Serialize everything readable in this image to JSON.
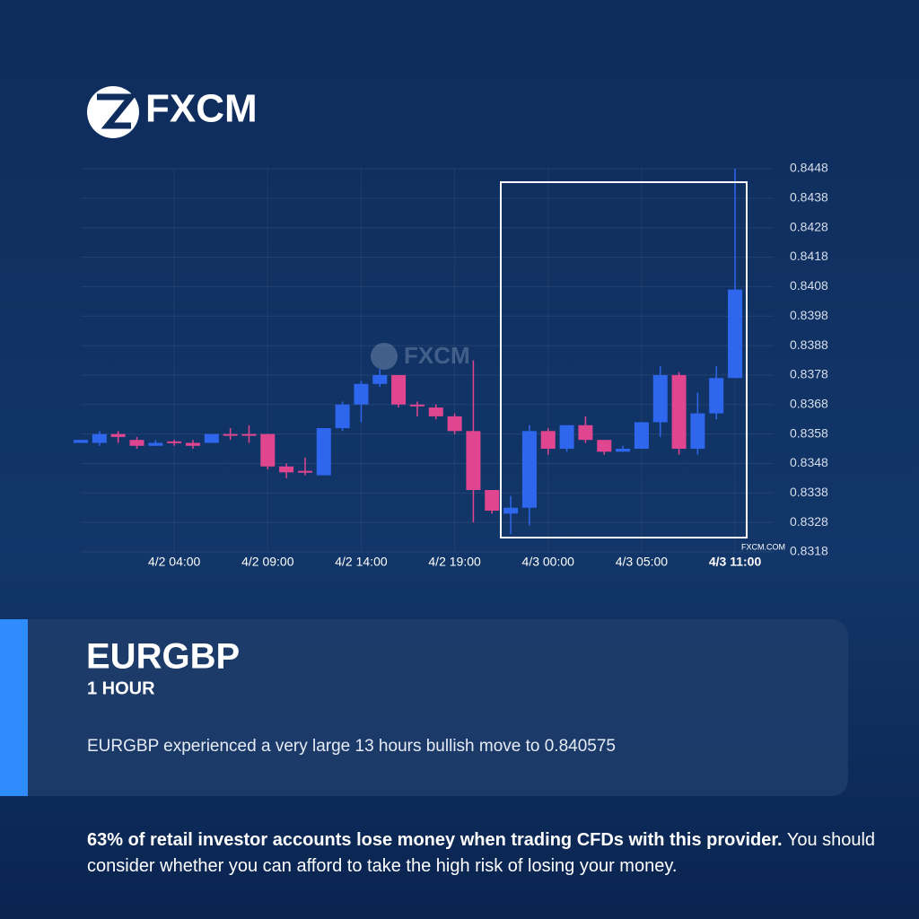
{
  "logo": "FXCM",
  "chart_data": {
    "type": "candlestick",
    "watermark": "FXCM",
    "source": "FXCM.COM",
    "categories": [
      null,
      null,
      null,
      null,
      null,
      "4/2 04:00",
      null,
      null,
      null,
      null,
      "4/2 09:00",
      null,
      null,
      null,
      null,
      "4/2 14:00",
      null,
      null,
      null,
      null,
      "4/2 19:00",
      null,
      null,
      null,
      null,
      "4/3 00:00",
      null,
      null,
      null,
      null,
      "4/3 05:00",
      null,
      null,
      null,
      null,
      "4/3 11:00"
    ],
    "open": [
      0.8355,
      0.8355,
      0.8358,
      0.8356,
      0.8354,
      0.83555,
      0.8355,
      0.8355,
      0.8358,
      0.8358,
      0.8358,
      0.8347,
      0.83455,
      0.8344,
      0.836,
      0.8368,
      0.8375,
      0.8378,
      0.8368,
      0.8367,
      0.8364,
      0.8359,
      0.8339,
      0.8331,
      0.8333,
      0.8359,
      0.8353,
      0.8361,
      0.8356,
      0.8352,
      0.8353,
      0.8362,
      0.8378,
      0.8353,
      0.8365,
      0.8377
    ],
    "high": [
      0.8356,
      0.8359,
      0.8359,
      0.8357,
      0.8356,
      0.8356,
      0.8356,
      0.8358,
      0.836,
      0.8361,
      0.8358,
      0.8348,
      0.835,
      0.836,
      0.8369,
      0.8376,
      0.838,
      0.8378,
      0.8369,
      0.8368,
      0.8365,
      0.8383,
      0.8339,
      0.8337,
      0.8361,
      0.836,
      0.8361,
      0.8364,
      0.8356,
      0.8354,
      0.8362,
      0.8381,
      0.8379,
      0.8372,
      0.8381,
      0.8448
    ],
    "low": [
      0.8355,
      0.8354,
      0.8355,
      0.8353,
      0.8354,
      0.8354,
      0.8353,
      0.8355,
      0.8356,
      0.8355,
      0.8346,
      0.8343,
      0.8344,
      0.8344,
      0.8359,
      0.8362,
      0.8374,
      0.8367,
      0.8364,
      0.8363,
      0.8358,
      0.8328,
      0.8331,
      0.8324,
      0.8327,
      0.8351,
      0.8352,
      0.8355,
      0.8351,
      0.8352,
      0.8353,
      0.8357,
      0.8351,
      0.8351,
      0.8363,
      0.8377
    ],
    "close": [
      0.8356,
      0.8358,
      0.8357,
      0.8354,
      0.8355,
      0.8355,
      0.8354,
      0.8358,
      0.83578,
      0.83575,
      0.8347,
      0.8345,
      0.8345,
      0.836,
      0.8368,
      0.8375,
      0.8378,
      0.8368,
      0.83675,
      0.8364,
      0.8359,
      0.8339,
      0.8332,
      0.8333,
      0.8359,
      0.8353,
      0.8361,
      0.8356,
      0.8352,
      0.8353,
      0.8362,
      0.8378,
      0.8353,
      0.8365,
      0.8377,
      0.8407
    ],
    "up_color": "#2f66ee",
    "down_color": "#e0468f",
    "ylim": [
      0.8318,
      0.8448
    ],
    "yticks": [
      0.8448,
      0.8438,
      0.8428,
      0.8418,
      0.8408,
      0.8398,
      0.8388,
      0.8378,
      0.8368,
      0.8358,
      0.8348,
      0.8338,
      0.8328,
      0.8318
    ],
    "grid": true
  },
  "card": {
    "symbol": "EURGBP",
    "timeframe": "1 HOUR",
    "description": "EURGBP experienced a very large 13 hours bullish move to 0.840575"
  },
  "disclaimer": {
    "bold": "63% of retail investor accounts lose money when trading CFDs with this provider.",
    "text": "You should consider whether you can afford to take the high risk of losing your money."
  }
}
